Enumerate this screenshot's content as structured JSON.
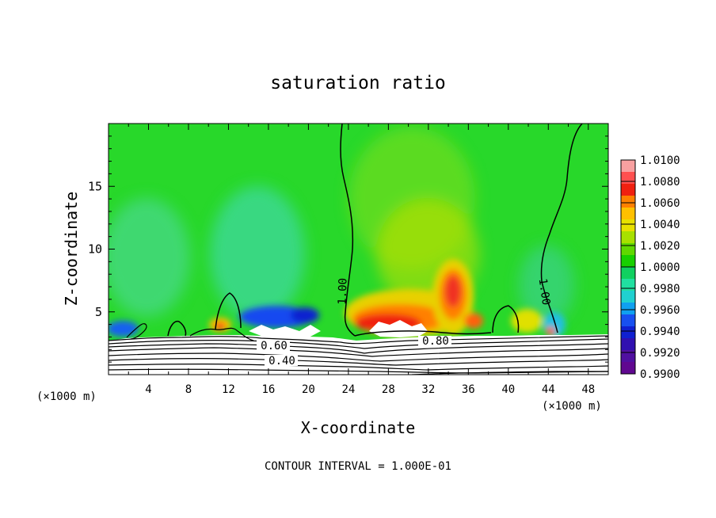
{
  "chart_data": {
    "type": "heatmap",
    "title": "saturation ratio",
    "xlabel": "X-coordinate",
    "ylabel": "Z-coordinate",
    "x_unit": "(×1000 m)",
    "x_unit_right": "(×1000 m)",
    "xlim": [
      0,
      50
    ],
    "ylim": [
      0,
      20
    ],
    "x_ticks": [
      4,
      8,
      12,
      16,
      20,
      24,
      28,
      32,
      36,
      40,
      44,
      48
    ],
    "y_ticks": [
      5,
      10,
      15
    ],
    "footer": "CONTOUR INTERVAL = 1.000E-01",
    "contour_labels": [
      {
        "text": "1.00",
        "x": 23.5,
        "y": 6.5
      },
      {
        "text": "1.00",
        "x": 43.3,
        "y": 6.5
      },
      {
        "text": "0.60",
        "x": 16.8,
        "y": 2.2
      },
      {
        "text": "0.40",
        "x": 17.6,
        "y": 1.1
      },
      {
        "text": "0.80",
        "x": 32.8,
        "y": 2.6
      }
    ],
    "colorbar": {
      "labels": [
        "1.0100",
        "1.0080",
        "1.0060",
        "1.0040",
        "1.0020",
        "1.0000",
        "0.9980",
        "0.9960",
        "0.9940",
        "0.9920",
        "0.9900"
      ],
      "colors": [
        "#f8a0a0",
        "#ff5050",
        "#f02010",
        "#ff8000",
        "#ffc000",
        "#e8e000",
        "#a8e000",
        "#60d800",
        "#18d000",
        "#10d060",
        "#20e0a0",
        "#20d0d0",
        "#10a0f0",
        "#1850f0",
        "#1020d0",
        "#3010b0",
        "#5010a0",
        "#600890"
      ]
    }
  }
}
